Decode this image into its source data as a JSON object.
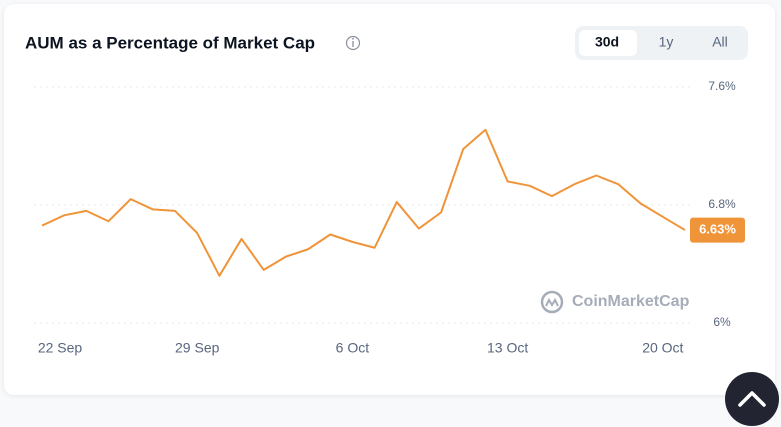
{
  "chart_data": {
    "type": "line",
    "title": "AUM as a Percentage of Market Cap",
    "range_buttons": [
      "30d",
      "1y",
      "All"
    ],
    "active_range": "30d",
    "watermark": "CoinMarketCap",
    "current_value_label": "6.63%",
    "color": "#f0943a",
    "categories": [
      "22 Sep",
      null,
      null,
      null,
      null,
      null,
      null,
      "29 Sep",
      null,
      null,
      null,
      null,
      null,
      null,
      "6 Oct",
      null,
      null,
      null,
      null,
      null,
      null,
      "13 Oct",
      null,
      null,
      null,
      null,
      null,
      null,
      "20 Oct",
      null
    ],
    "values": [
      6.66,
      6.73,
      6.76,
      6.69,
      6.84,
      6.77,
      6.76,
      6.61,
      6.32,
      6.57,
      6.36,
      6.45,
      6.5,
      6.6,
      6.55,
      6.51,
      6.82,
      6.64,
      6.75,
      7.18,
      7.31,
      6.96,
      6.93,
      6.86,
      6.94,
      7.0,
      6.94,
      6.81,
      6.72,
      6.63
    ],
    "ylim": [
      6,
      7.6
    ],
    "yticks": [
      {
        "value": 6,
        "label": "6%"
      },
      {
        "value": 6.8,
        "label": "6.8%"
      },
      {
        "value": 7.6,
        "label": "7.6%"
      }
    ],
    "grid": true
  }
}
